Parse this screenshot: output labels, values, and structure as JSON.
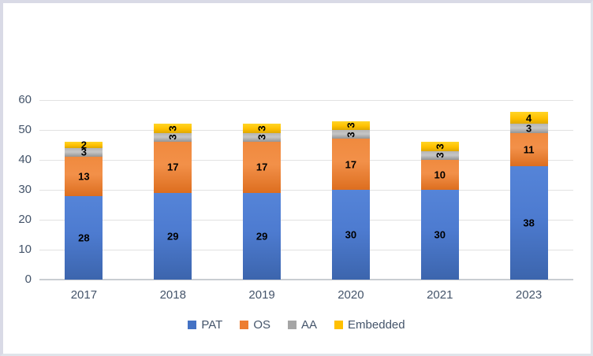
{
  "figure": {
    "background": "#ffffff",
    "border_color": "#d9dae6"
  },
  "chart_data": {
    "type": "bar",
    "stacked": true,
    "title": "",
    "xlabel": "",
    "ylabel": "",
    "categories": [
      "2017",
      "2018",
      "2019",
      "2020",
      "2021",
      "2023"
    ],
    "series": [
      {
        "name": "PAT",
        "color": "#4472C4",
        "values": [
          28,
          29,
          29,
          30,
          30,
          38
        ],
        "label_rotated": [
          false,
          false,
          false,
          false,
          false,
          false
        ]
      },
      {
        "name": "OS",
        "color": "#ED7D31",
        "values": [
          13,
          17,
          17,
          17,
          10,
          11
        ],
        "label_rotated": [
          false,
          false,
          false,
          false,
          false,
          false
        ]
      },
      {
        "name": "AA",
        "color": "#A5A5A5",
        "values": [
          3,
          3,
          3,
          3,
          3,
          3
        ],
        "label_rotated": [
          false,
          true,
          true,
          true,
          true,
          false
        ]
      },
      {
        "name": "Embedded",
        "color": "#FFC000",
        "values": [
          2,
          3,
          3,
          3,
          3,
          4
        ],
        "label_rotated": [
          false,
          true,
          true,
          true,
          true,
          false
        ]
      }
    ],
    "totals": [
      46,
      52,
      52,
      53,
      46,
      56
    ],
    "ylim": [
      0,
      60
    ],
    "yticks": [
      0,
      10,
      20,
      30,
      40,
      50,
      60
    ],
    "grid": true,
    "data_labels": true,
    "legend_position": "bottom",
    "axis_text_color": "#44546a",
    "gridline_color": "#e2e2e2",
    "baseline_color": "#c9cdd2",
    "data_label_color": "#000000"
  }
}
